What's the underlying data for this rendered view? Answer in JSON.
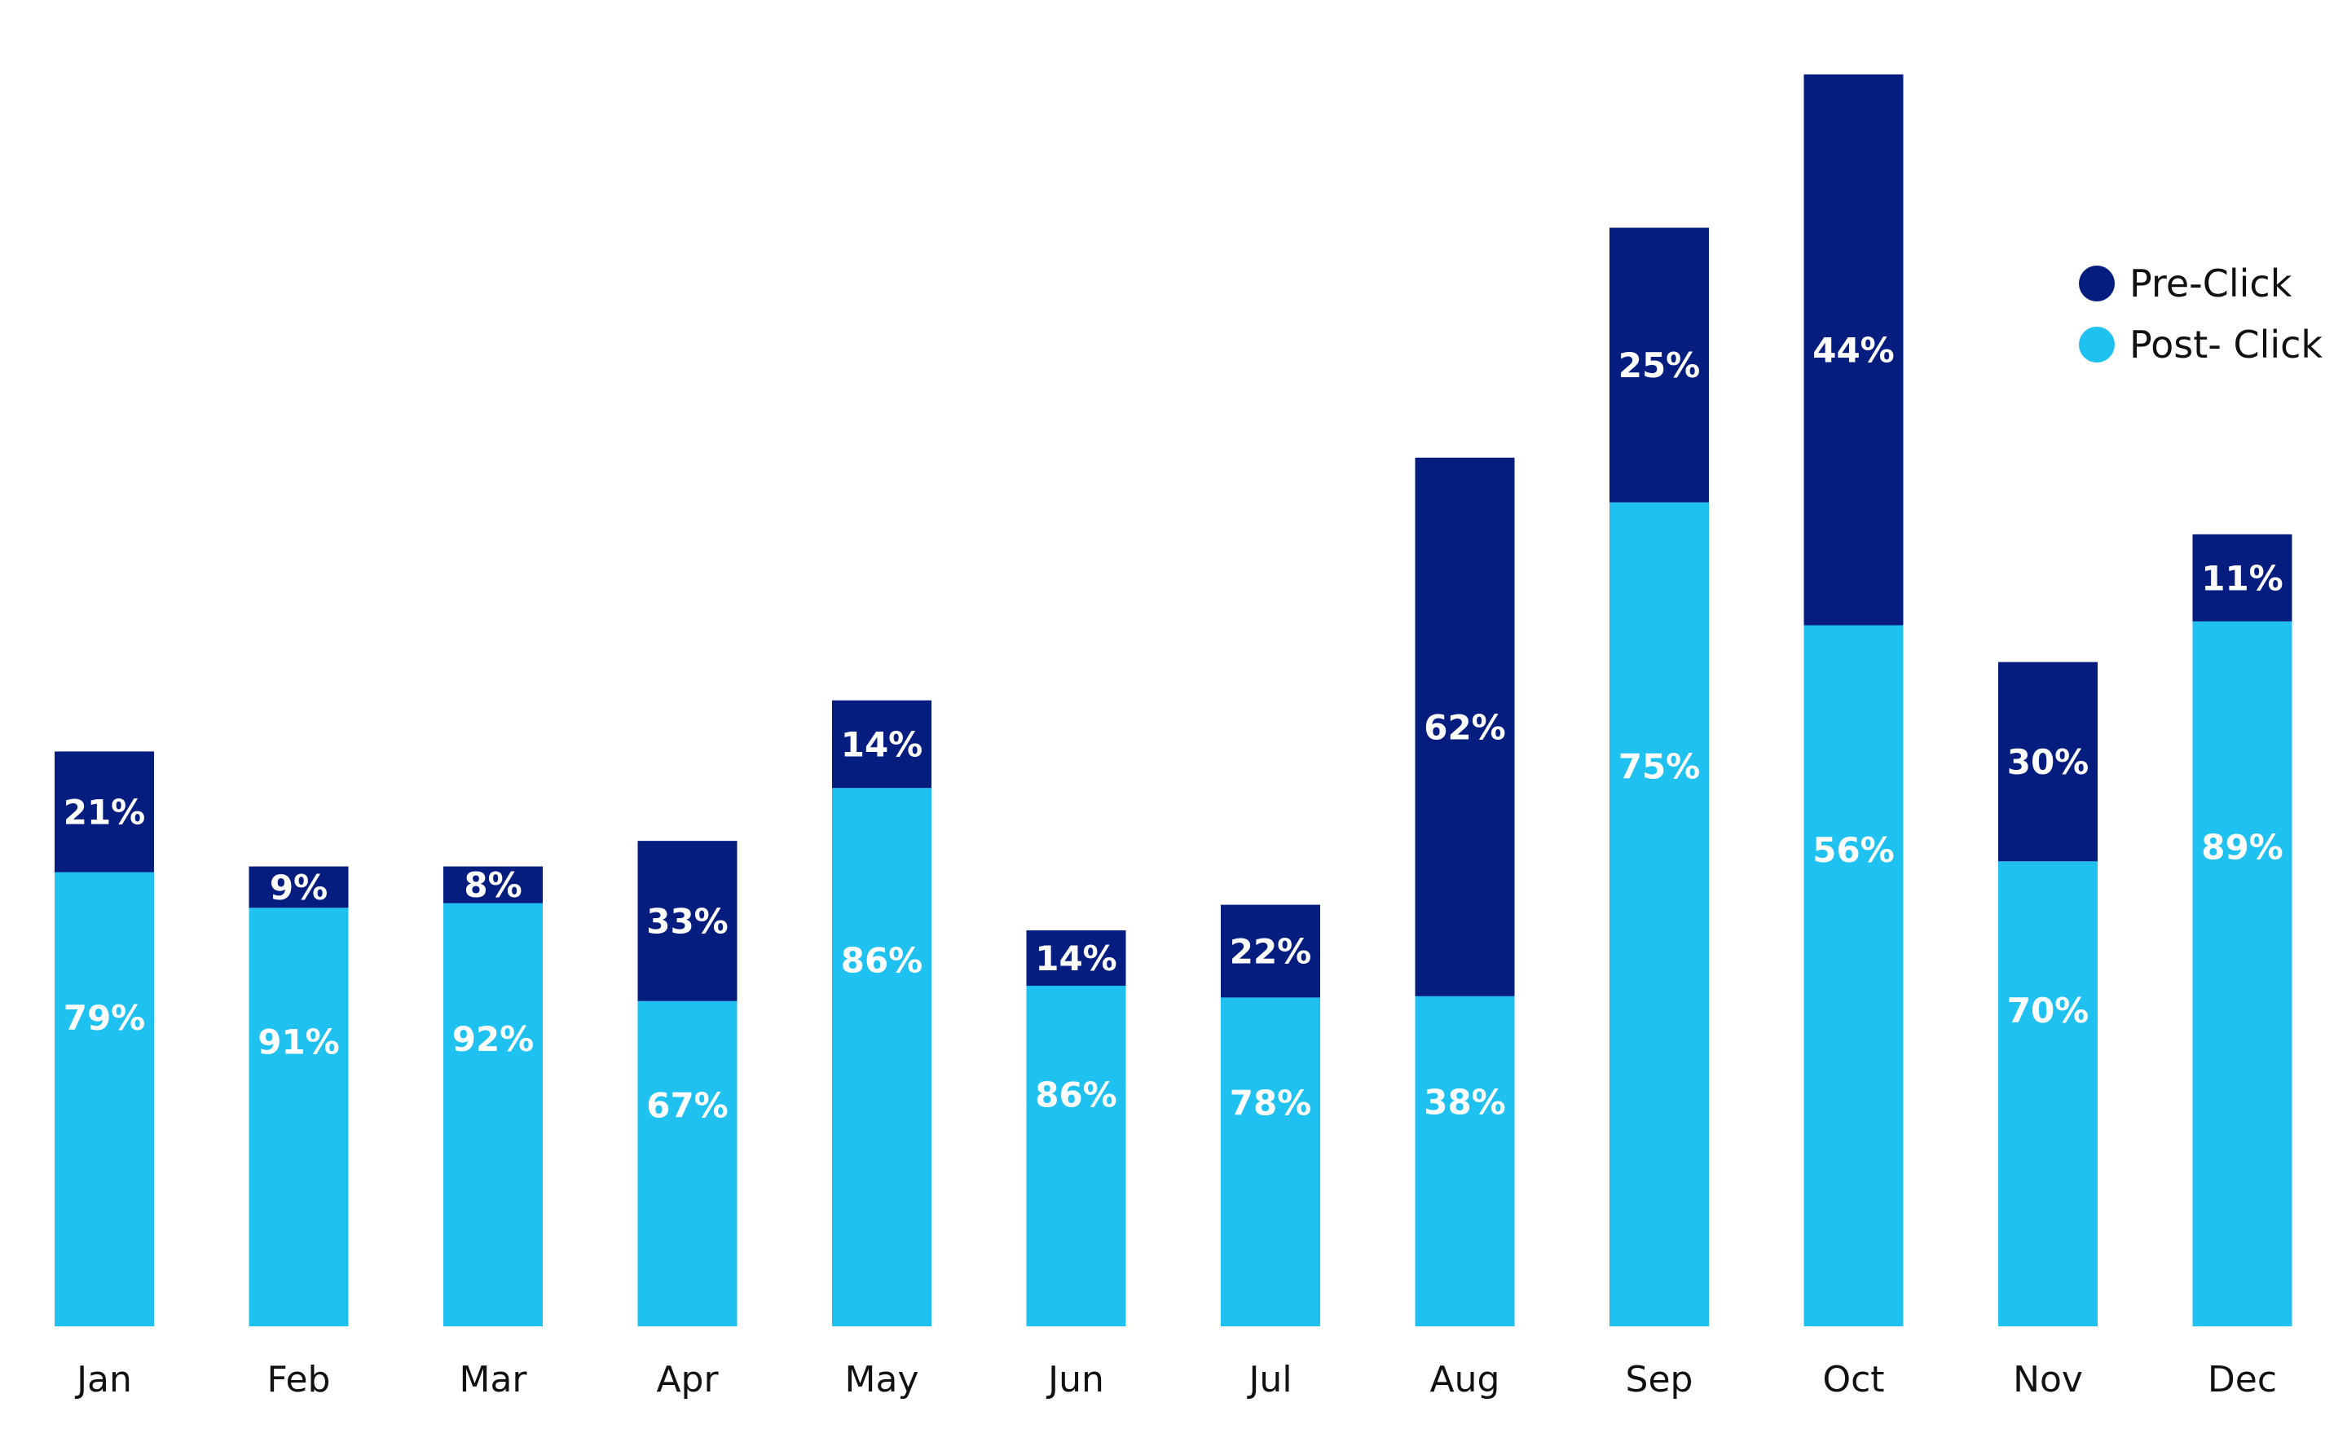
{
  "chart_data": {
    "type": "bar",
    "stacked": true,
    "categories": [
      "Jan",
      "Feb",
      "Mar",
      "Apr",
      "May",
      "Jun",
      "Jul",
      "Aug",
      "Sep",
      "Oct",
      "Nov",
      "Dec"
    ],
    "series": [
      {
        "name": "Post- Click",
        "color": "#1FC1F1",
        "values": [
          79,
          91,
          92,
          67,
          86,
          86,
          78,
          38,
          75,
          56,
          70,
          89
        ],
        "labels": [
          "79%",
          "91%",
          "92%",
          "67%",
          "86%",
          "86%",
          "78%",
          "38%",
          "75%",
          "56%",
          "70%",
          "89%"
        ]
      },
      {
        "name": "Pre-Click",
        "color": "#061D80",
        "values": [
          21,
          9,
          8,
          33,
          14,
          14,
          22,
          62,
          25,
          44,
          30,
          11
        ],
        "labels": [
          "21%",
          "9%",
          "8%",
          "33%",
          "14%",
          "14%",
          "22%",
          "62%",
          "25%",
          "44%",
          "30%",
          "11%"
        ]
      }
    ],
    "totals_relative": [
      45,
      36,
      36,
      38,
      49,
      31,
      33,
      68,
      86,
      98,
      52,
      62
    ],
    "legend": [
      {
        "label": "Pre-Click",
        "color": "#061D80"
      },
      {
        "label": "Post- Click",
        "color": "#1FC1F1"
      }
    ],
    "legend_position": "top-right",
    "title": "",
    "xlabel": "",
    "ylabel": "",
    "grid": false,
    "ylim": [
      0,
      100
    ]
  }
}
